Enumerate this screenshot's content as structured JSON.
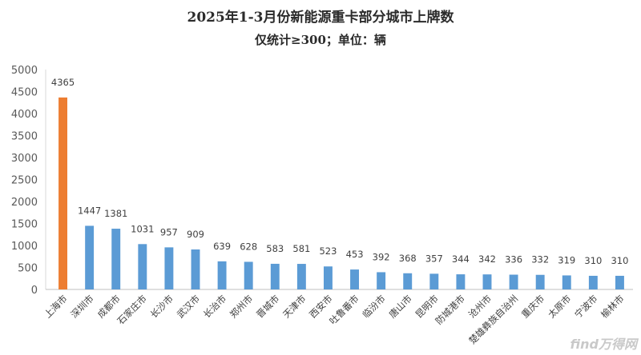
{
  "chart_data": {
    "type": "bar",
    "title": "2025年1-3月份新能源重卡部分城市上牌数",
    "subtitle": "仅统计≥300；单位：辆",
    "categories": [
      "上海市",
      "深圳市",
      "成都市",
      "石家庄市",
      "长沙市",
      "武汉市",
      "长治市",
      "郑州市",
      "晋城市",
      "天津市",
      "西安市",
      "吐鲁番市",
      "临汾市",
      "唐山市",
      "昆明市",
      "防城港市",
      "沧州市",
      "楚雄彝族自治州",
      "重庆市",
      "太原市",
      "宁波市",
      "榆林市"
    ],
    "values": [
      4365,
      1447,
      1381,
      1031,
      957,
      909,
      639,
      628,
      583,
      581,
      523,
      453,
      392,
      368,
      357,
      344,
      342,
      336,
      332,
      319,
      310,
      310
    ],
    "ylim": [
      0,
      5000
    ],
    "yticks": [
      0,
      500,
      1000,
      1500,
      2000,
      2500,
      3000,
      3500,
      4000,
      4500,
      5000
    ],
    "grid": false,
    "legend": "none",
    "colors": {
      "default": "#5b9bd5",
      "highlight": "#ed7d31"
    },
    "highlight_index": 0
  },
  "watermark": "find万得网"
}
